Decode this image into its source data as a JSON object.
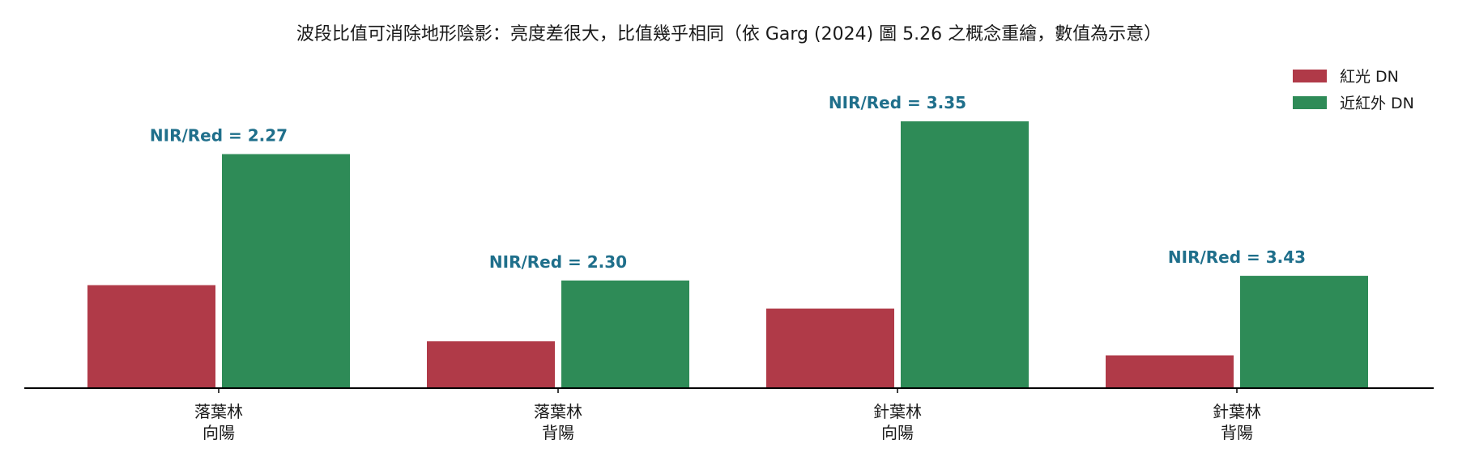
{
  "chart_data": {
    "type": "bar",
    "title": "波段比值可消除地形陰影：亮度差很大，比值幾乎相同（依 Garg (2024) 圖 5.26 之概念重繪，數值為示意）",
    "xlabel": "",
    "ylabel": "",
    "ylim": [
      0,
      170
    ],
    "grid": false,
    "legend_position": "top-right",
    "categories": [
      [
        "落葉林",
        "向陽"
      ],
      [
        "落葉林",
        "背陽"
      ],
      [
        "針葉林",
        "向陽"
      ],
      [
        "針葉林",
        "背陽"
      ]
    ],
    "series": [
      {
        "name": "紅光 DN",
        "color": "#b03a48",
        "values": [
          66,
          30,
          51,
          21
        ]
      },
      {
        "name": "近紅外 DN",
        "color": "#2e8b57",
        "values": [
          150,
          69,
          171,
          72
        ]
      }
    ],
    "annotations": [
      {
        "category_index": 0,
        "text": "NIR/Red = 2.27"
      },
      {
        "category_index": 1,
        "text": "NIR/Red = 2.30"
      },
      {
        "category_index": 2,
        "text": "NIR/Red = 3.35"
      },
      {
        "category_index": 3,
        "text": "NIR/Red = 3.43"
      }
    ],
    "annotation_color": "#1f6f8b",
    "axis_color": "#000000"
  }
}
